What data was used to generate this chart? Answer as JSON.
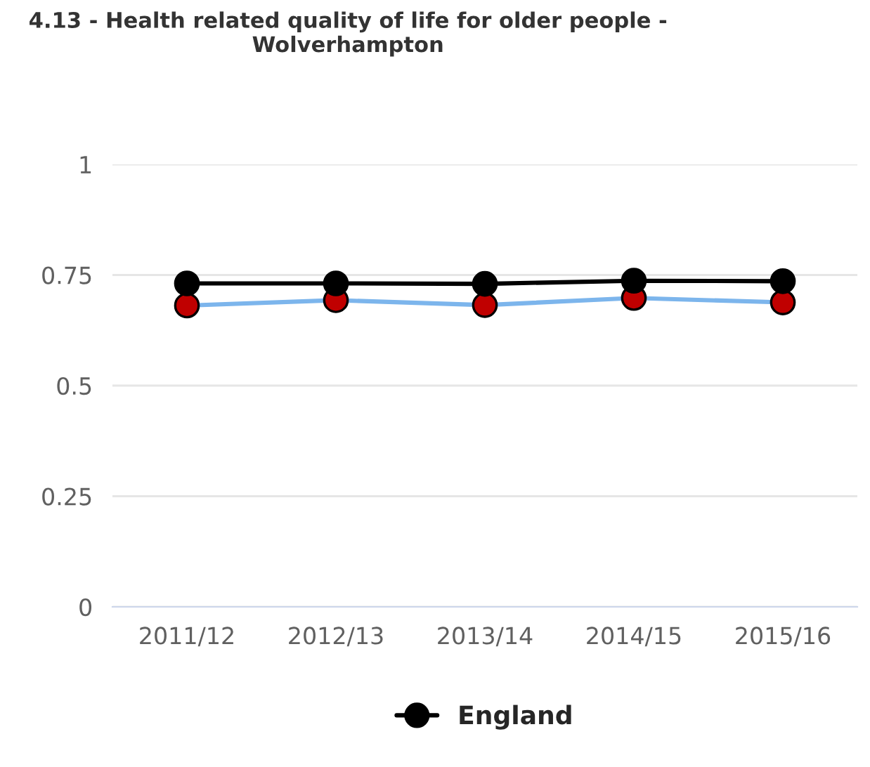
{
  "chart_data": {
    "type": "line",
    "title": "4.13 - Health related quality of life for older people -\nWolverhampton",
    "categories": [
      "2011/12",
      "2012/13",
      "2013/14",
      "2014/15",
      "2015/16"
    ],
    "series": [
      {
        "color": "#7cb5ec",
        "colors": [
          "#c00000",
          "#c00000",
          "#c00000",
          "#c00000",
          "#c00000"
        ],
        "values": [
          0.681,
          0.693,
          0.682,
          0.698,
          0.688
        ]
      },
      {
        "name": "England",
        "color": "#000000",
        "values": [
          0.731,
          0.731,
          0.73,
          0.737,
          0.736
        ]
      }
    ],
    "ylim": [
      0,
      1
    ],
    "yticks": [
      0,
      0.25,
      0.5,
      0.75,
      1
    ],
    "grid": "y",
    "legend": "bottom",
    "marker": "circle",
    "line_style": "solid"
  }
}
